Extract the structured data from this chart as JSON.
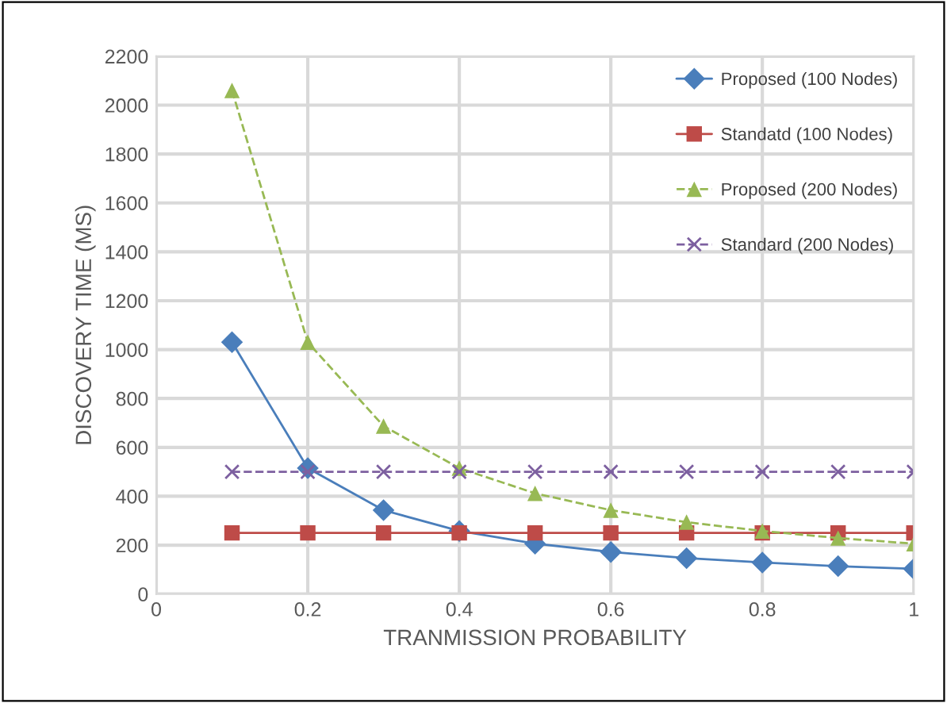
{
  "chart_data": {
    "type": "line",
    "xlabel": "TRANMISSION PROBABILITY",
    "ylabel": "DISCOVERY TIME (MS)",
    "x": [
      0.1,
      0.2,
      0.3,
      0.4,
      0.5,
      0.6,
      0.7,
      0.8,
      0.9,
      1
    ],
    "series": [
      {
        "name": "Proposed (100 Nodes)",
        "color": "#4a7ebb",
        "marker": "diamond",
        "line_style": "solid",
        "values": [
          1030,
          515,
          343,
          258,
          206,
          172,
          147,
          129,
          114,
          103
        ]
      },
      {
        "name": "Standatd (100 Nodes)",
        "color": "#be4b48",
        "marker": "square",
        "line_style": "solid",
        "values": [
          250,
          250,
          250,
          250,
          250,
          250,
          250,
          250,
          250,
          250
        ]
      },
      {
        "name": "Proposed (200 Nodes)",
        "color": "#98b954",
        "marker": "triangle",
        "line_style": "dashed",
        "values": [
          2060,
          1030,
          687,
          515,
          412,
          343,
          294,
          258,
          229,
          206
        ]
      },
      {
        "name": "Standard (200 Nodes)",
        "color": "#7d60a0",
        "marker": "cross",
        "line_style": "dashed",
        "values": [
          500,
          500,
          500,
          500,
          500,
          500,
          500,
          500,
          500,
          500
        ]
      }
    ],
    "xlim": [
      0,
      1
    ],
    "xticks": [
      0,
      0.2,
      0.4,
      0.6,
      0.8,
      1
    ],
    "ylim": [
      0,
      2200
    ],
    "yticks": [
      0,
      200,
      400,
      600,
      800,
      1000,
      1200,
      1400,
      1600,
      1800,
      2000,
      2200
    ],
    "grid": true,
    "legend": "top right"
  }
}
